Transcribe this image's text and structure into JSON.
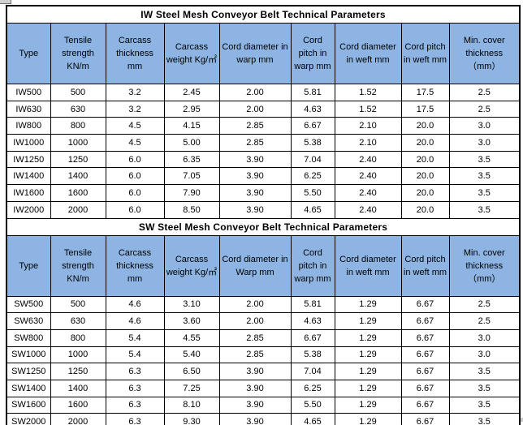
{
  "colors": {
    "header_bg": "#8DB4E2",
    "title_bg": "#FFFFFF",
    "row_bg": "#FFFFFF",
    "border": "#000000",
    "text": "#000000"
  },
  "tables": [
    {
      "title": "IW Steel Mesh Conveyor Belt Technical Parameters",
      "columns": [
        "Type",
        "Tensile strength KN/m",
        "Carcass thickness mm",
        "Carcass weight Kg/㎡",
        "Cord diameter in warp mm",
        "Cord pitch in warp mm",
        "Cord diameter in weft mm",
        "Cord pitch in weft mm",
        "Min. cover thickness （mm）"
      ],
      "rows": [
        [
          "IW500",
          "500",
          "3.2",
          "2.45",
          "2.00",
          "5.81",
          "1.52",
          "17.5",
          "2.5"
        ],
        [
          "IW630",
          "630",
          "3.2",
          "2.95",
          "2.00",
          "4.63",
          "1.52",
          "17.5",
          "2.5"
        ],
        [
          "IW800",
          "800",
          "4.5",
          "4.15",
          "2.85",
          "6.67",
          "2.10",
          "20.0",
          "3.0"
        ],
        [
          "IW1000",
          "1000",
          "4.5",
          "5.00",
          "2.85",
          "5.38",
          "2.10",
          "20.0",
          "3.0"
        ],
        [
          "IW1250",
          "1250",
          "6.0",
          "6.35",
          "3.90",
          "7.04",
          "2.40",
          "20.0",
          "3.5"
        ],
        [
          "IW1400",
          "1400",
          "6.0",
          "7.05",
          "3.90",
          "6.25",
          "2.40",
          "20.0",
          "3.5"
        ],
        [
          "IW1600",
          "1600",
          "6.0",
          "7.90",
          "3.90",
          "5.50",
          "2.40",
          "20.0",
          "3.5"
        ],
        [
          "IW2000",
          "2000",
          "6.0",
          "8.50",
          "3.90",
          "4.65",
          "2.40",
          "20.0",
          "3.5"
        ]
      ]
    },
    {
      "title": "SW Steel Mesh Conveyor Belt Technical Parameters",
      "columns": [
        "Type",
        "Tensile strength KN/m",
        "Carcass thickness mm",
        "Carcass weight Kg/㎡",
        "Cord diameter in Warp mm",
        "Cord pitch in warp mm",
        "Cord diameter in weft mm",
        "Cord pitch in weft mm",
        "Min. cover thickness （mm）"
      ],
      "rows": [
        [
          "SW500",
          "500",
          "4.6",
          "3.10",
          "2.00",
          "5.81",
          "1.29",
          "6.67",
          "2.5"
        ],
        [
          "SW630",
          "630",
          "4.6",
          "3.60",
          "2.00",
          "4.63",
          "1.29",
          "6.67",
          "2.5"
        ],
        [
          "SW800",
          "800",
          "5.4",
          "4.55",
          "2.85",
          "6.67",
          "1.29",
          "6.67",
          "3.0"
        ],
        [
          "SW1000",
          "1000",
          "5.4",
          "5.40",
          "2.85",
          "5.38",
          "1.29",
          "6.67",
          "3.0"
        ],
        [
          "SW1250",
          "1250",
          "6.3",
          "6.50",
          "3.90",
          "7.04",
          "1.29",
          "6.67",
          "3.5"
        ],
        [
          "SW1400",
          "1400",
          "6.3",
          "7.25",
          "3.90",
          "6.25",
          "1.29",
          "6.67",
          "3.5"
        ],
        [
          "SW1600",
          "1600",
          "6.3",
          "8.10",
          "3.90",
          "5.50",
          "1.29",
          "6.67",
          "3.5"
        ],
        [
          "SW2000",
          "2000",
          "6.3",
          "9.30",
          "3.90",
          "4.65",
          "1.29",
          "6.67",
          "3.5"
        ]
      ]
    }
  ]
}
